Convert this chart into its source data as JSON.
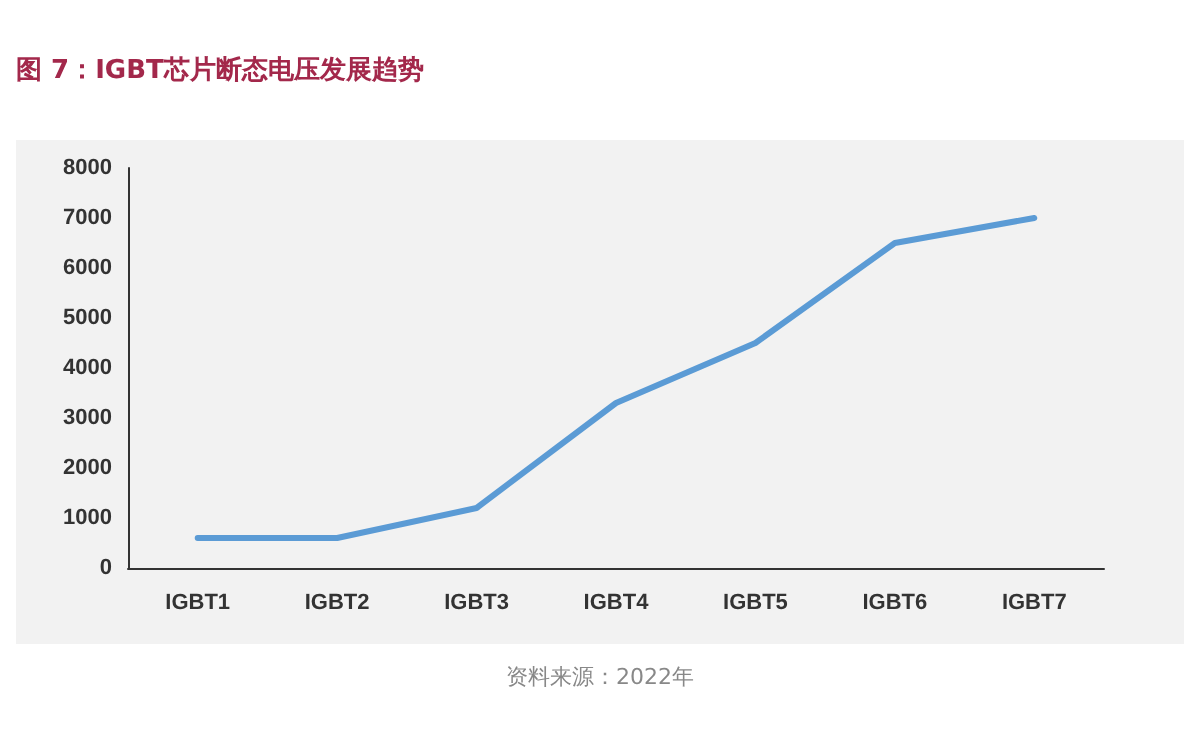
{
  "chart_data": {
    "type": "line",
    "title": "图 7：IGBT芯片断态电压发展趋势",
    "categories": [
      "IGBT1",
      "IGBT2",
      "IGBT3",
      "IGBT4",
      "IGBT5",
      "IGBT6",
      "IGBT7"
    ],
    "series": [
      {
        "color": "#5b9bd5",
        "values": [
          600,
          600,
          1200,
          3300,
          4500,
          6500,
          7000
        ]
      }
    ],
    "ylim": [
      0,
      8000
    ],
    "yticks": [
      0,
      1000,
      2000,
      3000,
      4000,
      5000,
      6000,
      7000,
      8000
    ],
    "grid": false,
    "marker": "none",
    "line_style": "solid",
    "annotations": [
      "资料来源：2022年"
    ]
  }
}
